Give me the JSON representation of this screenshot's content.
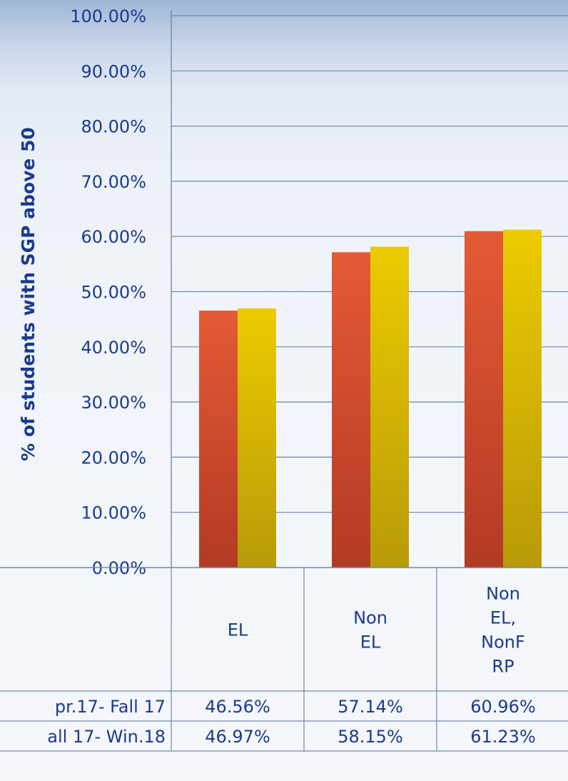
{
  "chart_data": {
    "type": "bar",
    "ylabel": "% of students with SGP above 50",
    "ylim": [
      0,
      100
    ],
    "yticks": [
      "0.00%",
      "10.00%",
      "20.00%",
      "30.00%",
      "40.00%",
      "50.00%",
      "60.00%",
      "70.00%",
      "80.00%",
      "90.00%",
      "100.00%"
    ],
    "categories": [
      [
        "EL"
      ],
      [
        "Non",
        "EL"
      ],
      [
        "Non",
        "EL,",
        "NonF",
        "RP"
      ]
    ],
    "series": [
      {
        "name": "pr.17- Fall 17",
        "values": [
          46.56,
          57.14,
          60.96
        ],
        "labels": [
          "46.56%",
          "57.14%",
          "60.96%"
        ],
        "color": "#d9462a"
      },
      {
        "name": "all 17- Win.18",
        "values": [
          46.97,
          58.15,
          61.23
        ],
        "labels": [
          "46.97%",
          "58.15%",
          "61.23%"
        ],
        "color": "#e1bf00"
      }
    ],
    "grid": true,
    "legend": "data-table"
  }
}
